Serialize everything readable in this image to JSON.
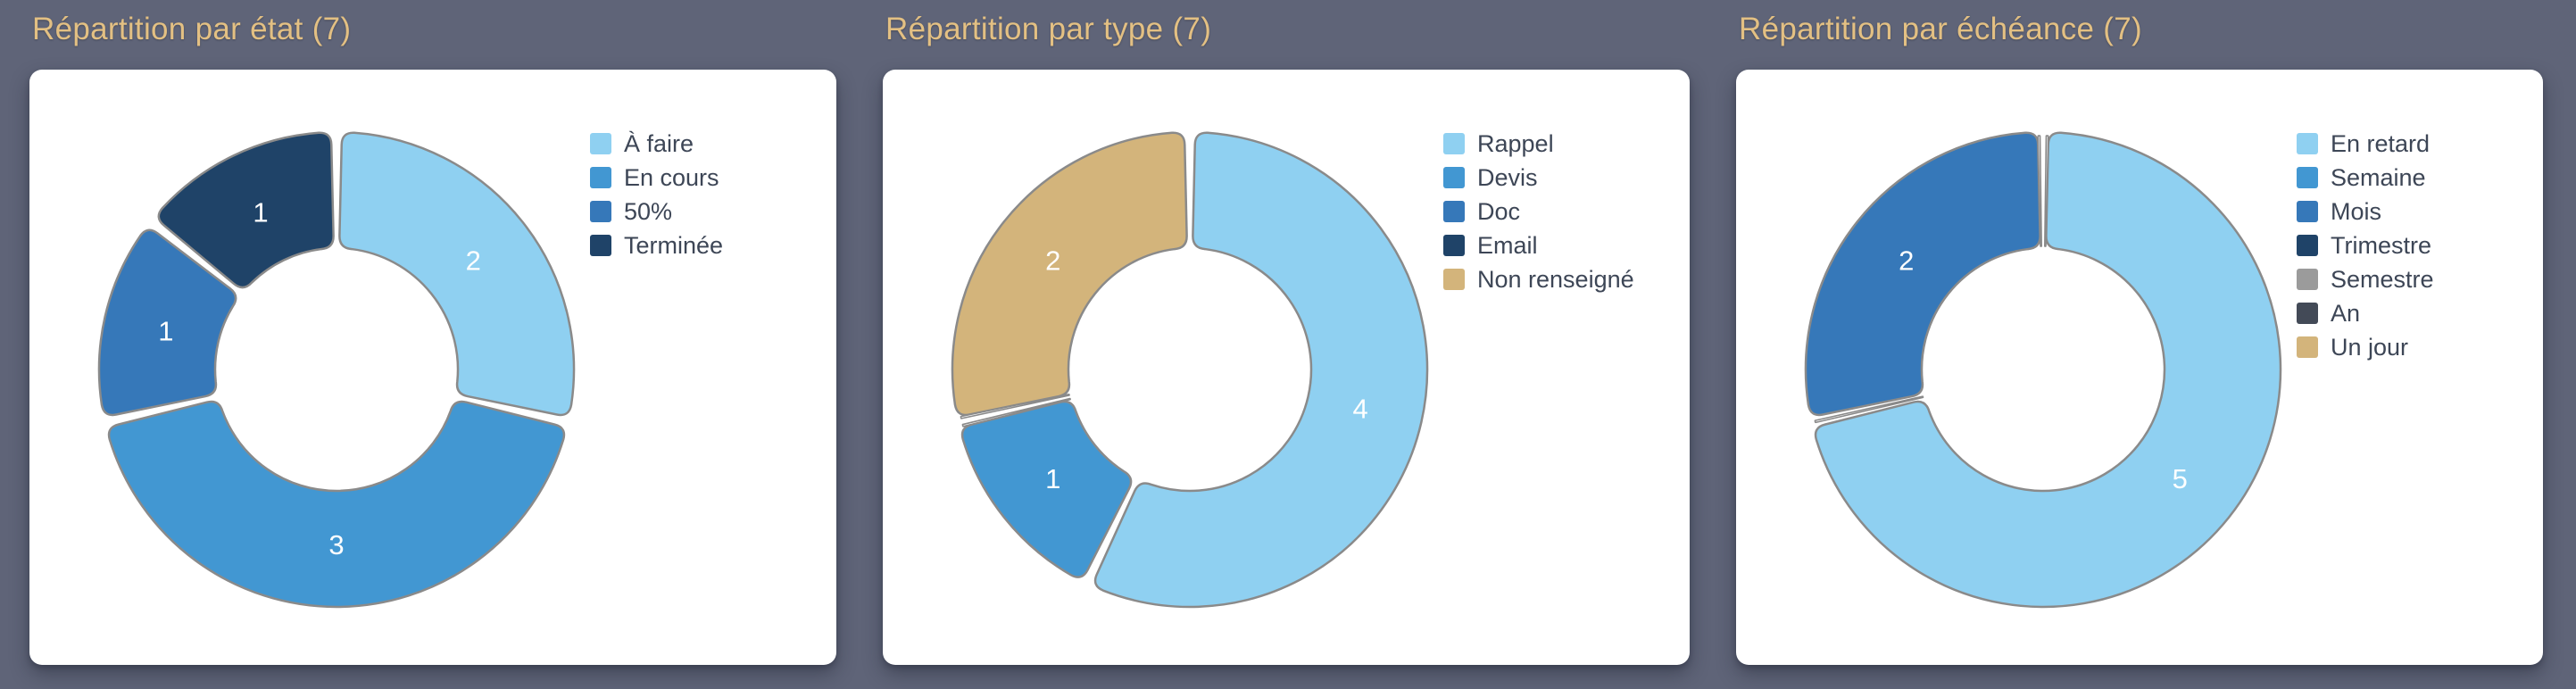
{
  "page": {
    "background_color": "#5f6478",
    "card_color": "#ffffff",
    "title_color": "#e3c083",
    "legend_text_color": "#3d4656",
    "segment_border_color": "#8a8a8a",
    "value_label_color": "#ffffff"
  },
  "chart_data": [
    {
      "type": "pie",
      "subtype": "donut",
      "title": "Répartition par état (7)",
      "total": 7,
      "legend_position": "right",
      "categories": [
        "À faire",
        "En cours",
        "50%",
        "Terminée"
      ],
      "values": [
        2,
        3,
        1,
        1
      ],
      "colors": [
        "#8fd0f1",
        "#4297d2",
        "#3678b9",
        "#1f4368"
      ]
    },
    {
      "type": "pie",
      "subtype": "donut",
      "title": "Répartition par type (7)",
      "total": 7,
      "legend_position": "right",
      "categories": [
        "Rappel",
        "Devis",
        "Doc",
        "Email",
        "Non renseigné"
      ],
      "values": [
        4,
        1,
        0,
        0,
        2
      ],
      "colors": [
        "#8fd0f1",
        "#4297d2",
        "#3678b9",
        "#1f4368",
        "#d3b47b"
      ]
    },
    {
      "type": "pie",
      "subtype": "donut",
      "title": "Répartition par échéance (7)",
      "total": 7,
      "legend_position": "right",
      "categories": [
        "En retard",
        "Semaine",
        "Mois",
        "Trimestre",
        "Semestre",
        "An",
        "Un jour"
      ],
      "values": [
        5,
        0,
        2,
        0,
        0,
        0,
        0
      ],
      "colors": [
        "#8fd0f1",
        "#4297d2",
        "#3678b9",
        "#1f4368",
        "#9b9b9b",
        "#434a57",
        "#d3b47b"
      ]
    }
  ]
}
